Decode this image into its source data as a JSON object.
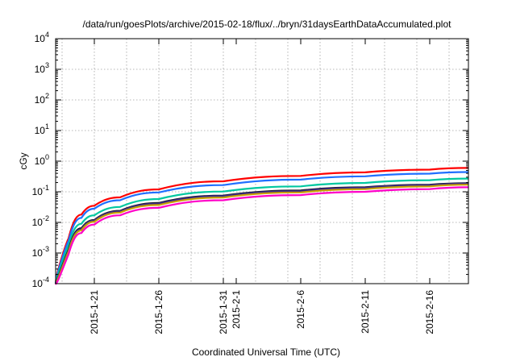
{
  "chart_data": {
    "type": "line",
    "title": "/data/run/goesPlots/archive/2015-02-18/flux/../bryn/31daysEarthDataAccumulated.plot",
    "xlabel": "Coordinated Universal Time (UTC)",
    "ylabel": "cGy",
    "yscale": "log",
    "ylim": [
      0.0001,
      10000
    ],
    "xlim": [
      "2015-01-18",
      "2015-02-19"
    ],
    "grid": true,
    "y_ticks": [
      {
        "base": "10",
        "exp": "-4",
        "value": 0.0001
      },
      {
        "base": "10",
        "exp": "-3",
        "value": 0.001
      },
      {
        "base": "10",
        "exp": "-2",
        "value": 0.01
      },
      {
        "base": "10",
        "exp": "-1",
        "value": 0.1
      },
      {
        "base": "10",
        "exp": "0",
        "value": 1
      },
      {
        "base": "10",
        "exp": "1",
        "value": 10
      },
      {
        "base": "10",
        "exp": "2",
        "value": 100
      },
      {
        "base": "10",
        "exp": "3",
        "value": 1000
      },
      {
        "base": "10",
        "exp": "4",
        "value": 10000
      }
    ],
    "x_ticks": [
      "2015-1-21",
      "2015-1-26",
      "2015-1-31",
      "2015-2-1",
      "2015-2-6",
      "2015-2-11",
      "2015-2-16"
    ],
    "series": [
      {
        "color": "#ff0000",
        "x": [
          "2015-01-19",
          "2015-01-20",
          "2015-01-21",
          "2015-01-23",
          "2015-01-26",
          "2015-01-31",
          "2015-02-06",
          "2015-02-11",
          "2015-02-16",
          "2015-02-19"
        ],
        "values": [
          0.003,
          0.018,
          0.035,
          0.066,
          0.12,
          0.22,
          0.33,
          0.43,
          0.53,
          0.6
        ]
      },
      {
        "color": "#1f6fff",
        "x": [
          "2015-01-19",
          "2015-01-20",
          "2015-01-21",
          "2015-01-23",
          "2015-01-26",
          "2015-01-31",
          "2015-02-06",
          "2015-02-11",
          "2015-02-16",
          "2015-02-19"
        ],
        "values": [
          0.0025,
          0.014,
          0.028,
          0.053,
          0.095,
          0.165,
          0.25,
          0.32,
          0.39,
          0.44
        ]
      },
      {
        "color": "#00c8a0",
        "x": [
          "2015-01-19",
          "2015-01-20",
          "2015-01-21",
          "2015-01-23",
          "2015-01-26",
          "2015-01-31",
          "2015-02-06",
          "2015-02-11",
          "2015-02-16",
          "2015-02-19"
        ],
        "values": [
          0.0018,
          0.009,
          0.017,
          0.032,
          0.058,
          0.102,
          0.15,
          0.195,
          0.24,
          0.27
        ]
      },
      {
        "color": "#1a1a1a",
        "x": [
          "2015-01-19",
          "2015-01-20",
          "2015-01-21",
          "2015-01-23",
          "2015-01-26",
          "2015-01-31",
          "2015-02-06",
          "2015-02-11",
          "2015-02-16",
          "2015-02-19"
        ],
        "values": [
          0.0013,
          0.0065,
          0.012,
          0.024,
          0.043,
          0.075,
          0.11,
          0.14,
          0.17,
          0.19
        ]
      },
      {
        "color": "#3a2a8a",
        "x": [
          "2015-01-19",
          "2015-01-20",
          "2015-01-21",
          "2015-01-23",
          "2015-01-26",
          "2015-01-31",
          "2015-02-06",
          "2015-02-11",
          "2015-02-16",
          "2015-02-19"
        ],
        "values": [
          0.0012,
          0.006,
          0.0115,
          0.023,
          0.041,
          0.072,
          0.105,
          0.135,
          0.165,
          0.185
        ]
      },
      {
        "color": "#c8a000",
        "x": [
          "2015-01-19",
          "2015-01-20",
          "2015-01-21",
          "2015-01-23",
          "2015-01-26",
          "2015-01-31",
          "2015-02-06",
          "2015-02-11",
          "2015-02-16",
          "2015-02-19"
        ],
        "values": [
          0.0011,
          0.0055,
          0.0105,
          0.021,
          0.037,
          0.065,
          0.095,
          0.122,
          0.15,
          0.17
        ]
      },
      {
        "color": "#ff00c8",
        "x": [
          "2015-01-19",
          "2015-01-20",
          "2015-01-21",
          "2015-01-23",
          "2015-01-26",
          "2015-01-31",
          "2015-02-06",
          "2015-02-11",
          "2015-02-16",
          "2015-02-19"
        ],
        "values": [
          0.0009,
          0.0045,
          0.0085,
          0.017,
          0.03,
          0.053,
          0.078,
          0.1,
          0.122,
          0.14
        ]
      }
    ]
  }
}
